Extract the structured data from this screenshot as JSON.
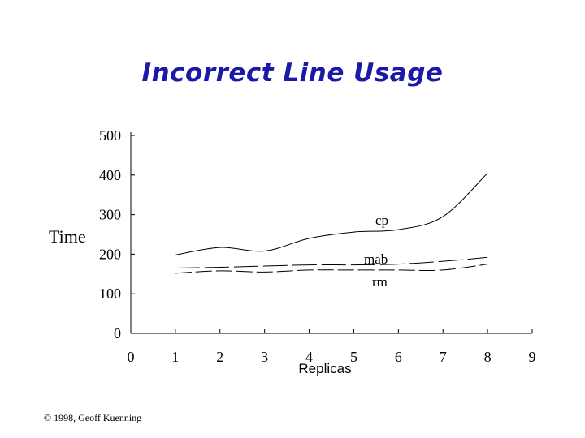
{
  "title": "Incorrect Line Usage",
  "footer": "© 1998, Geoff Kuenning",
  "chart_data": {
    "type": "line",
    "title": "Incorrect Line Usage",
    "xlabel": "Replicas",
    "ylabel": "Time",
    "xlim": [
      0,
      9
    ],
    "ylim": [
      0,
      500
    ],
    "xticks": [
      0,
      1,
      2,
      3,
      4,
      5,
      6,
      7,
      8,
      9
    ],
    "yticks": [
      0,
      100,
      200,
      300,
      400,
      500
    ],
    "grid": false,
    "legend": "none",
    "series": [
      {
        "name": "cp",
        "style": "solid",
        "x": [
          1,
          2,
          3,
          4,
          5,
          6,
          7,
          8
        ],
        "y": [
          198,
          217,
          208,
          240,
          256,
          262,
          295,
          405
        ]
      },
      {
        "name": "mab",
        "style": "long-dash",
        "x": [
          1,
          2,
          3,
          4,
          5,
          6,
          7,
          8
        ],
        "y": [
          165,
          167,
          170,
          173,
          173,
          175,
          182,
          192
        ]
      },
      {
        "name": "rm",
        "style": "dash",
        "x": [
          1,
          2,
          3,
          4,
          5,
          6,
          7,
          8
        ],
        "y": [
          152,
          158,
          155,
          160,
          160,
          160,
          160,
          175
        ]
      }
    ]
  }
}
